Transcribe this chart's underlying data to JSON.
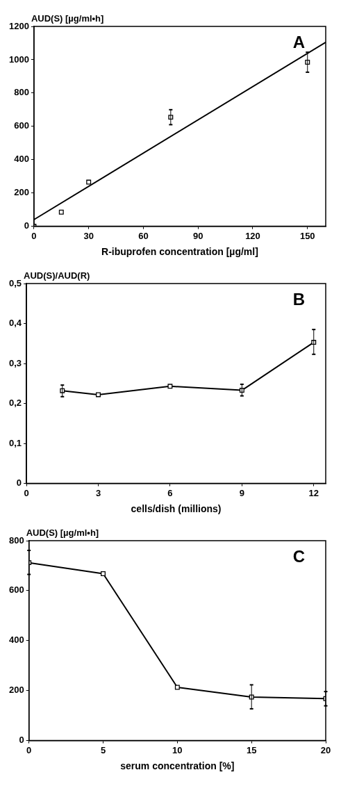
{
  "chart_data": [
    {
      "type": "scatter",
      "xlabel": "R-ibuprofen concentration [µg/ml]",
      "ylabel": "AUD(S) [µg/ml•h]",
      "annotations": [
        "A"
      ],
      "marker": "square",
      "xlim": [
        0,
        160
      ],
      "xticks": [
        0,
        30,
        60,
        90,
        120,
        150
      ],
      "ylim": [
        0,
        1200
      ],
      "yticks": [
        0,
        200,
        400,
        600,
        800,
        1000,
        1200
      ],
      "series": [
        {
          "color": "#000000",
          "x": [
            0,
            15,
            30,
            75,
            150
          ],
          "values": [
            0,
            85,
            265,
            655,
            985
          ],
          "errors": [
            null,
            null,
            null,
            [
              610,
              700
            ],
            [
              925,
              1045
            ]
          ]
        },
        {
          "type": "line",
          "color": "#000000",
          "marker": "none",
          "x": [
            0,
            160
          ],
          "values": [
            40,
            1105
          ]
        }
      ]
    },
    {
      "type": "line",
      "xlabel": "cells/dish (millions)",
      "ylabel": "AUD(S)/AUD(R)",
      "annotations": [
        "B"
      ],
      "marker": "square",
      "xlim": [
        0,
        12.5
      ],
      "xticks": [
        0,
        3,
        6,
        9,
        12
      ],
      "ylim": [
        0,
        0.5
      ],
      "yticks": [
        0,
        {
          "value": 0.1,
          "label": "0,1"
        },
        {
          "value": 0.2,
          "label": "0,2"
        },
        {
          "value": 0.3,
          "label": "0,3"
        },
        {
          "value": 0.4,
          "label": "0,4"
        },
        {
          "value": 0.5,
          "label": "0,5"
        }
      ],
      "series": [
        {
          "color": "#000000",
          "x": [
            1.5,
            3,
            6,
            9,
            12
          ],
          "values": [
            0.232,
            0.222,
            0.243,
            0.233,
            0.353
          ],
          "errors": [
            [
              0.217,
              0.246
            ],
            null,
            null,
            [
              0.219,
              0.248
            ],
            [
              0.323,
              0.385
            ]
          ]
        }
      ]
    },
    {
      "type": "line",
      "xlabel": "serum concentration [%]",
      "ylabel": "AUD(S) [µg/ml•h]",
      "annotations": [
        "C"
      ],
      "marker": "square",
      "xlim": [
        0,
        20
      ],
      "xticks": [
        0,
        5,
        10,
        15,
        20
      ],
      "ylim": [
        0,
        800
      ],
      "yticks": [
        0,
        200,
        400,
        600,
        800
      ],
      "series": [
        {
          "color": "#000000",
          "x": [
            0,
            5,
            10,
            15,
            20
          ],
          "values": [
            712,
            668,
            213,
            174,
            168
          ],
          "errors": [
            [
              665,
              761
            ],
            null,
            null,
            [
              127,
              223
            ],
            [
              139,
              196
            ]
          ]
        }
      ]
    }
  ]
}
